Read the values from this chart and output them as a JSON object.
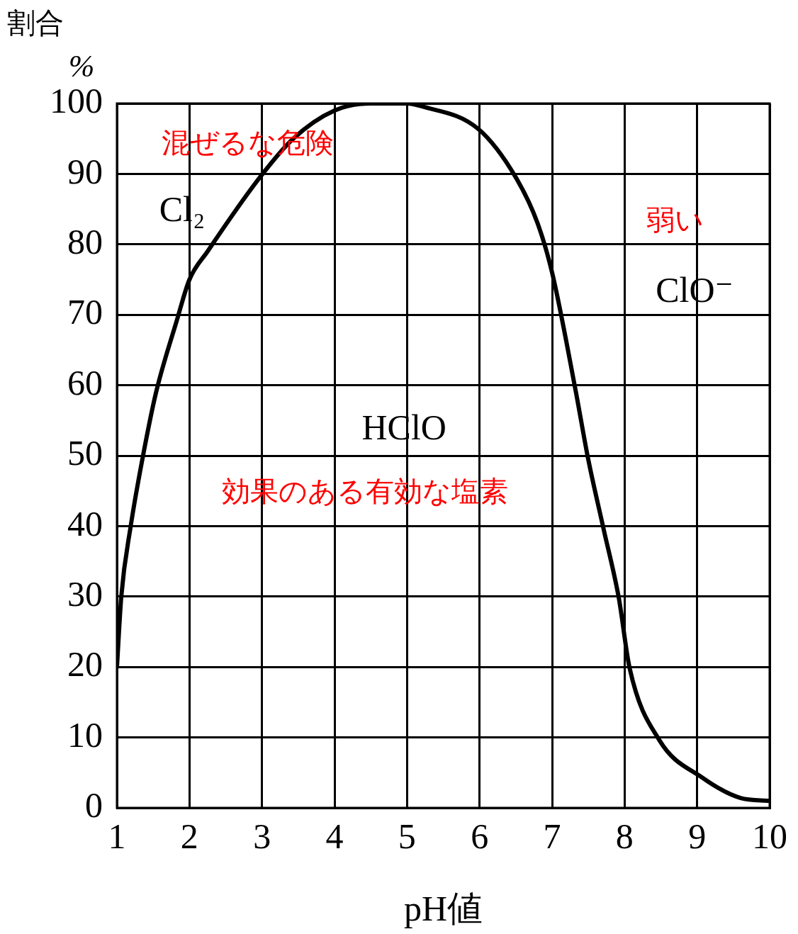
{
  "chart_data": {
    "type": "line",
    "xlabel": "pH値",
    "ylabel": "割合\n%",
    "x": [
      1,
      1.06,
      1.19,
      1.36,
      1.54,
      1.82,
      2.0,
      2.25,
      2.97,
      3.43,
      4.0,
      4.5,
      5.0,
      5.2,
      5.98,
      6.5,
      6.8,
      7.0,
      7.32,
      7.5,
      7.71,
      7.92,
      8.07,
      8.48,
      9.07,
      9.6,
      10
    ],
    "series": [
      {
        "color": "#000000",
        "values": [
          20,
          30,
          40,
          50,
          59,
          69,
          75,
          79,
          89.5,
          95,
          99,
          100,
          100,
          99.6,
          96.4,
          89.5,
          83,
          76,
          59.5,
          49.4,
          39.6,
          29.8,
          19.8,
          9.6,
          4.3,
          1.4,
          1
        ]
      }
    ],
    "xlim": [
      1,
      10
    ],
    "xticks": [
      1,
      2,
      3,
      4,
      5,
      6,
      7,
      8,
      9,
      10
    ],
    "ylim": [
      0,
      100
    ],
    "yticks": [
      0,
      10,
      20,
      30,
      40,
      50,
      60,
      70,
      80,
      90,
      100
    ],
    "grid": true,
    "legend": false,
    "marker": "none",
    "line_style": "solid",
    "annotations": [
      "混ぜるな危険",
      "Cl₂",
      "弱い",
      "ClO⁻",
      "HClO",
      "効果のある有効な塩素"
    ]
  }
}
